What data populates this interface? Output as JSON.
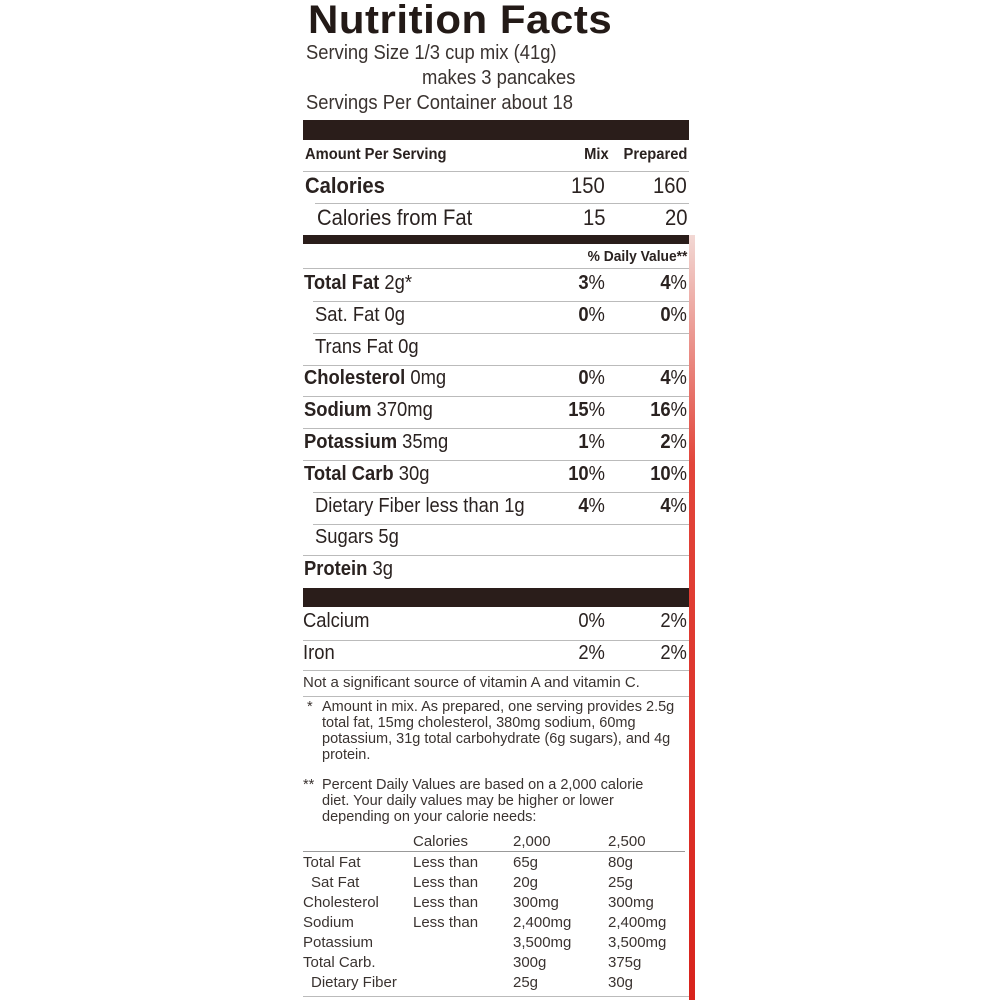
{
  "title": "Nutrition Facts",
  "serving_size": "Serving Size 1/3 cup mix (41g)",
  "serving_makes": "makes 3 pancakes",
  "servings_per_container": "Servings Per Container about 18",
  "header": {
    "amount": "Amount Per Serving",
    "mix": "Mix",
    "prepared": "Prepared"
  },
  "calories": {
    "label": "Calories",
    "mix": "150",
    "prepared": "160"
  },
  "calories_fat": {
    "label": "Calories from Fat",
    "mix": "15",
    "prepared": "20"
  },
  "dv_header": "% Daily Value**",
  "nutrients": [
    {
      "name": "Total Fat",
      "amount": "2g*",
      "mix": "3",
      "prepared": "4",
      "bold": true
    },
    {
      "name": "Sat. Fat",
      "amount": "0g",
      "mix": "0",
      "prepared": "0",
      "bold": false
    },
    {
      "name": "Trans Fat",
      "amount": "0g",
      "mix": "",
      "prepared": "",
      "bold": false
    },
    {
      "name": "Cholesterol",
      "amount": "0mg",
      "mix": "0",
      "prepared": "4",
      "bold": true
    },
    {
      "name": "Sodium",
      "amount": "370mg",
      "mix": "15",
      "prepared": "16",
      "bold": true
    },
    {
      "name": "Potassium",
      "amount": "35mg",
      "mix": "1",
      "prepared": "2",
      "bold": true
    },
    {
      "name": "Total Carb",
      "amount": "30g",
      "mix": "10",
      "prepared": "10",
      "bold": true
    },
    {
      "name": "Dietary Fiber",
      "amount": "less than 1g",
      "mix": "4",
      "prepared": "4",
      "bold": false
    },
    {
      "name": "Sugars",
      "amount": "5g",
      "mix": "",
      "prepared": "",
      "bold": false
    },
    {
      "name": "Protein",
      "amount": "3g",
      "mix": "",
      "prepared": "",
      "bold": true
    }
  ],
  "vitamins": [
    {
      "name": "Calcium",
      "mix": "0%",
      "prepared": "2%"
    },
    {
      "name": "Iron",
      "mix": "2%",
      "prepared": "2%"
    }
  ],
  "not_significant": "Not a significant source of vitamin A and vitamin C.",
  "footnote1_mark": "*",
  "footnote1": "Amount in mix. As prepared, one serving provides 2.5g total fat, 15mg cholesterol, 380mg sodium, 60mg potassium, 31g total carbohydrate (6g sugars), and 4g protein.",
  "footnote2_mark": "**",
  "footnote2": "Percent Daily Values are based on a 2,000 calorie diet. Your daily values may be higher or lower depending on your calorie needs:",
  "dv_table": {
    "header": [
      "",
      "Calories",
      "2,000",
      "2,500"
    ],
    "rows": [
      [
        "Total Fat",
        "Less than",
        "65g",
        "80g"
      ],
      [
        "Sat Fat",
        "Less than",
        "20g",
        "25g"
      ],
      [
        "Cholesterol",
        "Less than",
        "300mg",
        "300mg"
      ],
      [
        "Sodium",
        "Less than",
        "2,400mg",
        "2,400mg"
      ],
      [
        "Potassium",
        "",
        "3,500mg",
        "3,500mg"
      ],
      [
        "Total Carb.",
        "",
        "300g",
        "375g"
      ],
      [
        "Dietary Fiber",
        "",
        "25g",
        "30g"
      ]
    ]
  },
  "colors": {
    "ink": "#2a1d1a",
    "edge": "#d8231c"
  }
}
